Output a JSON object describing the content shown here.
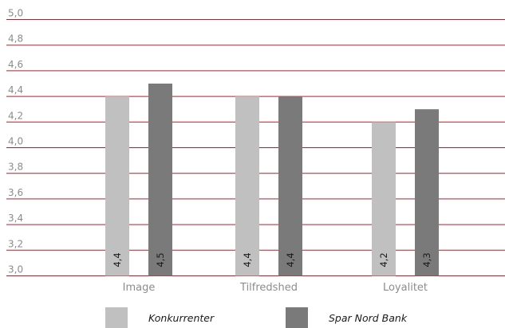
{
  "chart_data": {
    "type": "bar",
    "categories": [
      "Image",
      "Tilfredshed",
      "Loyalitet"
    ],
    "series": [
      {
        "name": "Konkurrenter",
        "values": [
          4.4,
          4.4,
          4.2
        ],
        "labels": [
          "4,4",
          "4,4",
          "4,2"
        ],
        "color": "#c0c0c0"
      },
      {
        "name": "Spar Nord Bank",
        "values": [
          4.5,
          4.4,
          4.3
        ],
        "labels": [
          "4,5",
          "4,4",
          "4,3"
        ],
        "color": "#7a7a7a"
      }
    ],
    "ylim": [
      3.0,
      5.0
    ],
    "yticks": [
      3.0,
      3.2,
      3.4,
      3.6,
      3.8,
      4.0,
      4.2,
      4.4,
      4.6,
      4.8,
      5.0
    ],
    "ytick_labels": [
      "3,0",
      "3,2",
      "3,4",
      "3,6",
      "3,8",
      "4,0",
      "4,2",
      "4,4",
      "4,6",
      "4,8",
      "5,0"
    ],
    "grid": true,
    "gridline_color": "#b0202a",
    "legend_position": "bottom",
    "title": "",
    "xlabel": "",
    "ylabel": ""
  }
}
